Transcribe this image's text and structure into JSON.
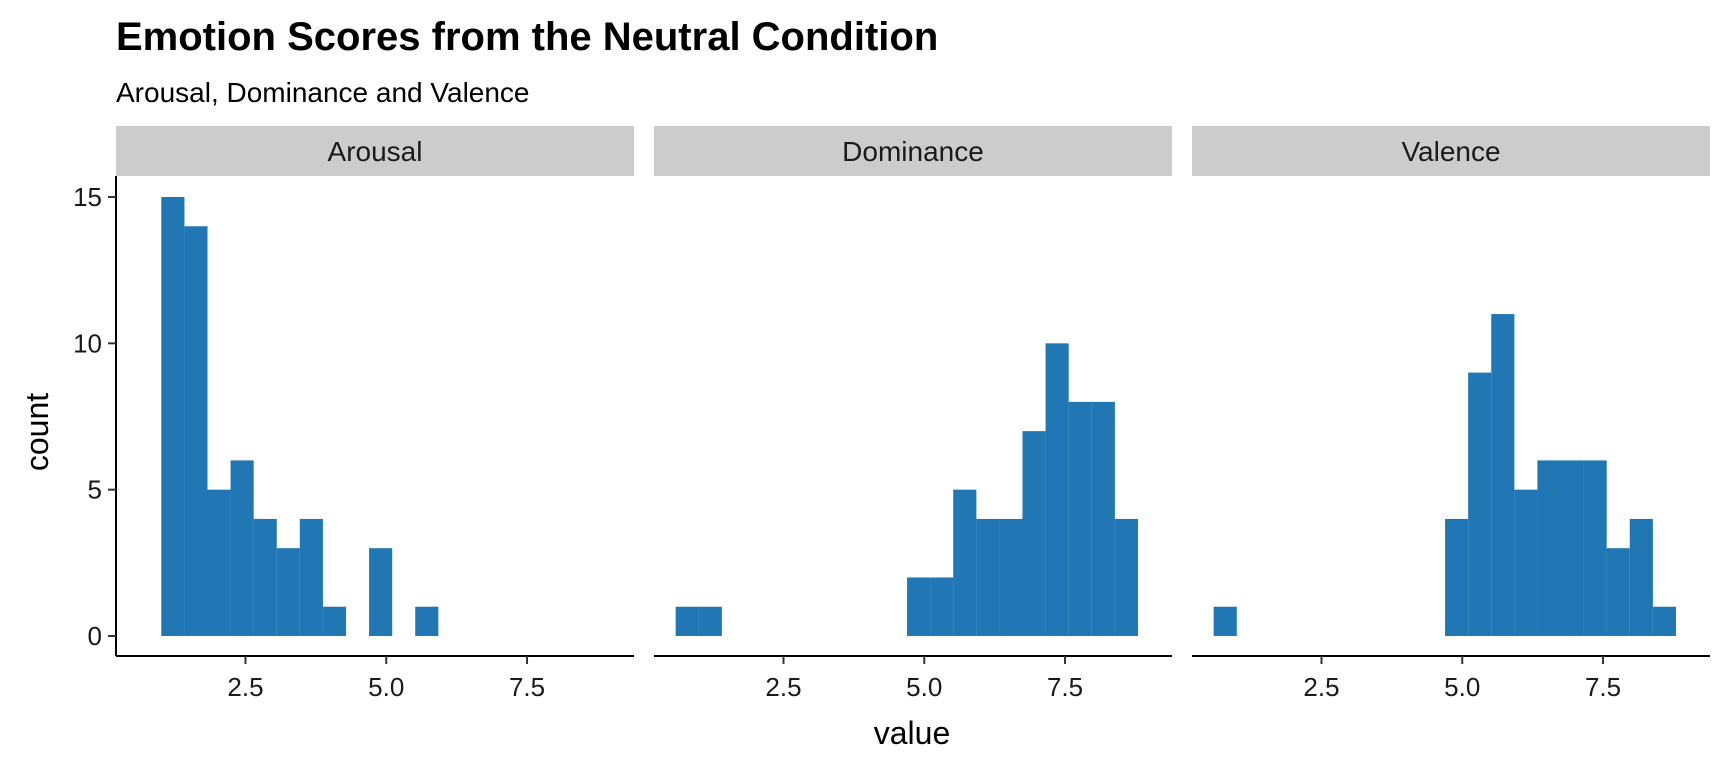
{
  "chart_data": {
    "type": "bar",
    "title": "Emotion Scores from the Neutral Condition",
    "subtitle": "Arousal, Dominance and Valence",
    "xlabel": "value",
    "ylabel": "count",
    "xlim": [
      0.2,
      9.4
    ],
    "ylim": [
      0,
      15
    ],
    "x_ticks": [
      2.5,
      5.0,
      7.5
    ],
    "x_tick_labels": [
      "2.5",
      "5.0",
      "7.5"
    ],
    "y_ticks": [
      0,
      5,
      10,
      15
    ],
    "y_tick_labels": [
      "0",
      "5",
      "10",
      "15"
    ],
    "bin_width": 0.4111,
    "bar_color": "#2077b4",
    "strip_color": "#cccccc",
    "grid": false,
    "panels": [
      {
        "name": "Arousal",
        "bins": [
          {
            "x": 1.21,
            "count": 15
          },
          {
            "x": 1.62,
            "count": 14
          },
          {
            "x": 2.03,
            "count": 5
          },
          {
            "x": 2.44,
            "count": 6
          },
          {
            "x": 2.85,
            "count": 4
          },
          {
            "x": 3.26,
            "count": 3
          },
          {
            "x": 3.67,
            "count": 4
          },
          {
            "x": 4.08,
            "count": 1
          },
          {
            "x": 4.9,
            "count": 3
          },
          {
            "x": 5.72,
            "count": 1
          }
        ]
      },
      {
        "name": "Dominance",
        "bins": [
          {
            "x": 0.79,
            "count": 1
          },
          {
            "x": 1.2,
            "count": 1
          },
          {
            "x": 4.9,
            "count": 2
          },
          {
            "x": 5.31,
            "count": 2
          },
          {
            "x": 5.72,
            "count": 5
          },
          {
            "x": 6.13,
            "count": 4
          },
          {
            "x": 6.54,
            "count": 4
          },
          {
            "x": 6.95,
            "count": 7
          },
          {
            "x": 7.36,
            "count": 10
          },
          {
            "x": 7.77,
            "count": 8
          },
          {
            "x": 8.18,
            "count": 8
          },
          {
            "x": 8.59,
            "count": 4
          }
        ]
      },
      {
        "name": "Valence",
        "bins": [
          {
            "x": 0.79,
            "count": 1
          },
          {
            "x": 4.9,
            "count": 4
          },
          {
            "x": 5.31,
            "count": 9
          },
          {
            "x": 5.72,
            "count": 11
          },
          {
            "x": 6.13,
            "count": 5
          },
          {
            "x": 6.54,
            "count": 6
          },
          {
            "x": 6.95,
            "count": 6
          },
          {
            "x": 7.36,
            "count": 6
          },
          {
            "x": 7.77,
            "count": 3
          },
          {
            "x": 8.18,
            "count": 4
          },
          {
            "x": 8.59,
            "count": 1
          }
        ]
      }
    ]
  }
}
